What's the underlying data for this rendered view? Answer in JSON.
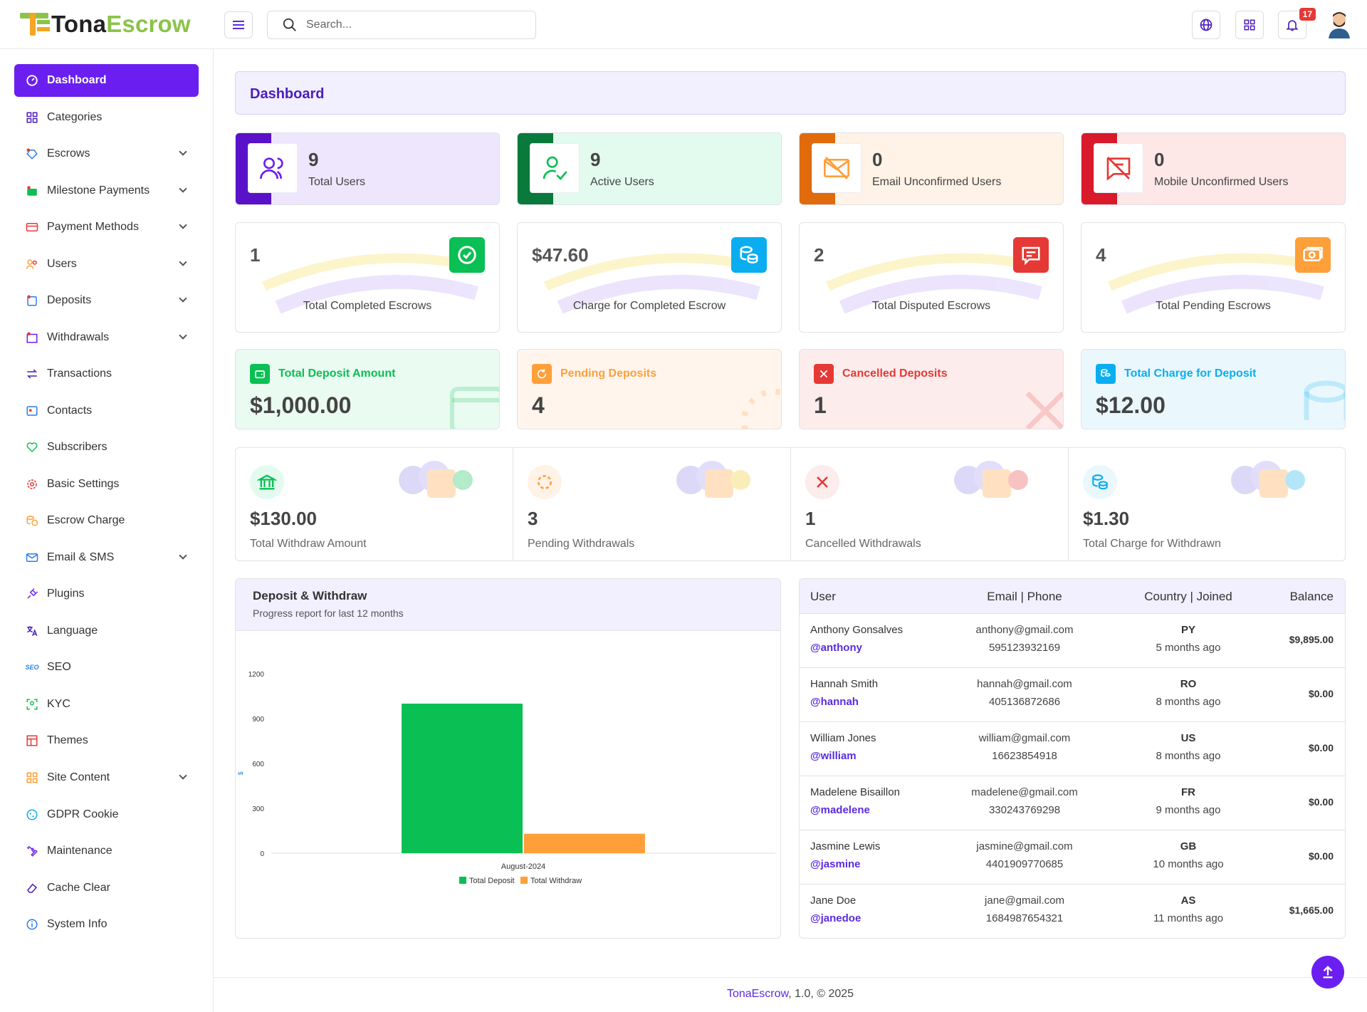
{
  "brand": {
    "part1": "Tona",
    "part2": "Escrow"
  },
  "search": {
    "placeholder": "Search..."
  },
  "header": {
    "notification_count": "17"
  },
  "sidebar": {
    "items": [
      {
        "label": "Dashboard",
        "icon": "dashboard-icon"
      },
      {
        "label": "Categories",
        "icon": "categories-icon"
      },
      {
        "label": "Escrows",
        "icon": "escrows-icon"
      },
      {
        "label": "Milestone Payments",
        "icon": "milestone-icon"
      },
      {
        "label": "Payment Methods",
        "icon": "payment-icon"
      },
      {
        "label": "Users",
        "icon": "users-icon"
      },
      {
        "label": "Deposits",
        "icon": "deposits-icon"
      },
      {
        "label": "Withdrawals",
        "icon": "withdrawals-icon"
      },
      {
        "label": "Transactions",
        "icon": "transactions-icon"
      },
      {
        "label": "Contacts",
        "icon": "contacts-icon"
      },
      {
        "label": "Subscribers",
        "icon": "subscribers-icon"
      },
      {
        "label": "Basic Settings",
        "icon": "settings-icon"
      },
      {
        "label": "Escrow Charge",
        "icon": "charge-icon"
      },
      {
        "label": "Email & SMS",
        "icon": "email-icon"
      },
      {
        "label": "Plugins",
        "icon": "plugins-icon"
      },
      {
        "label": "Language",
        "icon": "language-icon"
      },
      {
        "label": "SEO",
        "icon": "seo-icon"
      },
      {
        "label": "KYC",
        "icon": "kyc-icon"
      },
      {
        "label": "Themes",
        "icon": "themes-icon"
      },
      {
        "label": "Site Content",
        "icon": "site-content-icon"
      },
      {
        "label": "GDPR Cookie",
        "icon": "cookie-icon"
      },
      {
        "label": "Maintenance",
        "icon": "maintenance-icon"
      },
      {
        "label": "Cache Clear",
        "icon": "eraser-icon"
      },
      {
        "label": "System Info",
        "icon": "info-icon"
      }
    ]
  },
  "page_title": "Dashboard",
  "user_stats": [
    {
      "value": "9",
      "label": "Total Users",
      "color": "#5a12c8",
      "bg": "#ede6fd"
    },
    {
      "value": "9",
      "label": "Active Users",
      "color": "#0a7a3c",
      "bg": "#e3fbef"
    },
    {
      "value": "0",
      "label": "Email Unconfirmed Users",
      "color": "#e06a0c",
      "bg": "#fff2e6"
    },
    {
      "value": "0",
      "label": "Mobile Unconfirmed Users",
      "color": "#d91a2a",
      "bg": "#fde7e7"
    }
  ],
  "escrow_stats": [
    {
      "value": "1",
      "label": "Total Completed Escrows",
      "color": "#0abf53"
    },
    {
      "value": "$47.60",
      "label": "Charge for Completed Escrow",
      "color": "#0aaef0"
    },
    {
      "value": "2",
      "label": "Total Disputed Escrows",
      "color": "#e53935"
    },
    {
      "value": "4",
      "label": "Total Pending Escrows",
      "color": "#ff9f3a"
    }
  ],
  "deposit_stats": [
    {
      "label": "Total Deposit Amount",
      "value": "$1,000.00",
      "color": "#0abf53",
      "bg": "#eafbf1"
    },
    {
      "label": "Pending Deposits",
      "value": "4",
      "color": "#ff9f3a",
      "bg": "#fff5ec"
    },
    {
      "label": "Cancelled Deposits",
      "value": "1",
      "color": "#e53935",
      "bg": "#fdecec"
    },
    {
      "label": "Total Charge for Deposit",
      "value": "$12.00",
      "color": "#0aaef0",
      "bg": "#eaf8fe"
    }
  ],
  "withdraw_stats": [
    {
      "value": "$130.00",
      "label": "Total Withdraw Amount",
      "color": "#0abf53"
    },
    {
      "value": "3",
      "label": "Pending Withdrawals",
      "color": "#ff9f3a"
    },
    {
      "value": "1",
      "label": "Cancelled Withdrawals",
      "color": "#e53935"
    },
    {
      "value": "$1.30",
      "label": "Total Charge for Withdrawn",
      "color": "#0aaef0"
    }
  ],
  "chart": {
    "title": "Deposit & Withdraw",
    "subtitle": "Progress report for last 12 months"
  },
  "chart_data": {
    "type": "bar",
    "categories": [
      "August-2024"
    ],
    "series": [
      {
        "name": "Total Deposit",
        "values": [
          1000
        ],
        "color": "#0abf53"
      },
      {
        "name": "Total Withdraw",
        "values": [
          130
        ],
        "color": "#ff9f3a"
      }
    ],
    "yticks": [
      "0",
      "300",
      "600",
      "900",
      "1200"
    ],
    "ylim": [
      0,
      1200
    ],
    "ylabel": "$",
    "legend": "bottom"
  },
  "users_table": {
    "headers": {
      "user": "User",
      "contact": "Email | Phone",
      "country": "Country | Joined",
      "balance": "Balance"
    },
    "rows": [
      {
        "name": "Anthony Gonsalves",
        "username": "@anthony",
        "email": "anthony@gmail.com",
        "phone": "595123932169",
        "country": "PY",
        "joined": "5 months ago",
        "balance": "$9,895.00"
      },
      {
        "name": "Hannah Smith",
        "username": "@hannah",
        "email": "hannah@gmail.com",
        "phone": "405136872686",
        "country": "RO",
        "joined": "8 months ago",
        "balance": "$0.00"
      },
      {
        "name": "William Jones",
        "username": "@william",
        "email": "william@gmail.com",
        "phone": "16623854918",
        "country": "US",
        "joined": "8 months ago",
        "balance": "$0.00"
      },
      {
        "name": "Madelene Bisaillon",
        "username": "@madelene",
        "email": "madelene@gmail.com",
        "phone": "330243769298",
        "country": "FR",
        "joined": "9 months ago",
        "balance": "$0.00"
      },
      {
        "name": "Jasmine Lewis",
        "username": "@jasmine",
        "email": "jasmine@gmail.com",
        "phone": "4401909770685",
        "country": "GB",
        "joined": "10 months ago",
        "balance": "$0.00"
      },
      {
        "name": "Jane Doe",
        "username": "@janedoe",
        "email": "jane@gmail.com",
        "phone": "1684987654321",
        "country": "AS",
        "joined": "11 months ago",
        "balance": "$1,665.00"
      }
    ]
  },
  "footer": {
    "brand": "TonaEscrow",
    "rest": ", 1.0, © 2025"
  }
}
